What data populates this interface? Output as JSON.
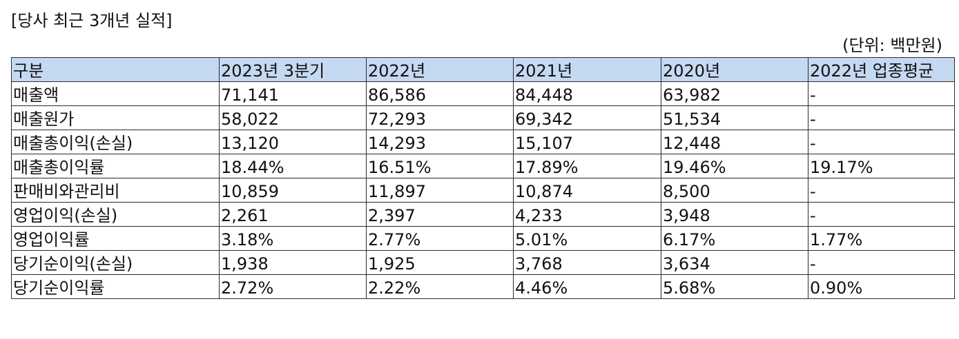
{
  "title": "[당사 최근 3개년 실적]",
  "unit": "(단위: 백만원)",
  "table": {
    "headers": [
      "구분",
      "2023년 3분기",
      "2022년",
      "2021년",
      "2020년",
      "2022년 업종평균"
    ],
    "rows": [
      [
        "매출액",
        "71,141",
        "86,586",
        "84,448",
        "63,982",
        "-"
      ],
      [
        "매출원가",
        "58,022",
        "72,293",
        "69,342",
        "51,534",
        "-"
      ],
      [
        "매출총이익(손실)",
        "13,120",
        "14,293",
        "15,107",
        "12,448",
        "-"
      ],
      [
        "매출총이익률",
        "18.44%",
        "16.51%",
        "17.89%",
        "19.46%",
        "19.17%"
      ],
      [
        "판매비와관리비",
        "10,859",
        "11,897",
        "10,874",
        "8,500",
        "-"
      ],
      [
        "영업이익(손실)",
        "2,261",
        "2,397",
        "4,233",
        "3,948",
        "-"
      ],
      [
        "영업이익률",
        "3.18%",
        "2.77%",
        "5.01%",
        "6.17%",
        "1.77%"
      ],
      [
        "당기순이익(손실)",
        "1,938",
        "1,925",
        "3,768",
        "3,634",
        "-"
      ],
      [
        "당기순이익률",
        "2.72%",
        "2.22%",
        "4.46%",
        "5.68%",
        "0.90%"
      ]
    ]
  }
}
